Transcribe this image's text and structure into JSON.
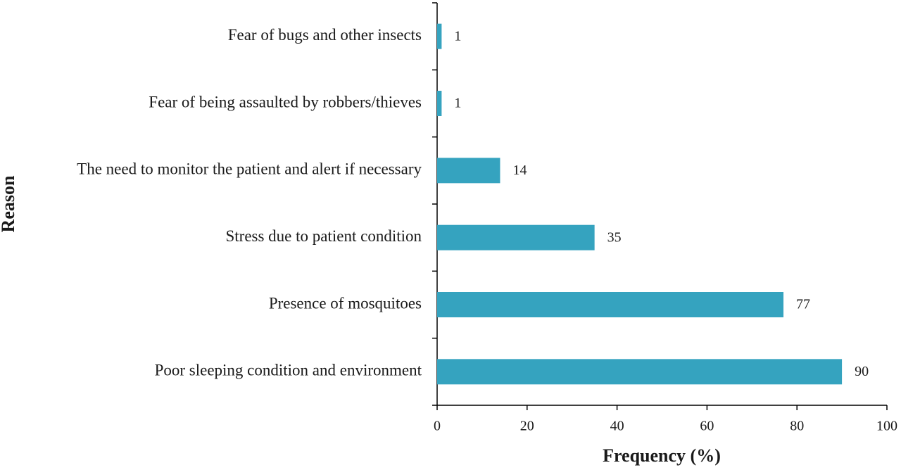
{
  "chart_data": {
    "type": "hbar",
    "x_label": "Frequency (%)",
    "y_label": "Reason",
    "categories": [
      "Fear of bugs and other insects",
      "Fear of being assaulted by robbers/thieves",
      "The need to monitor the patient and alert if necessary",
      "Stress due to patient condition",
      "Presence of mosquitoes",
      "Poor sleeping condition and environment"
    ],
    "values": [
      1,
      1,
      14,
      35,
      77,
      90
    ],
    "color": "#35a3bf",
    "xlim": [
      0,
      100
    ],
    "xticks": [
      0,
      20,
      40,
      60,
      80,
      100
    ]
  }
}
